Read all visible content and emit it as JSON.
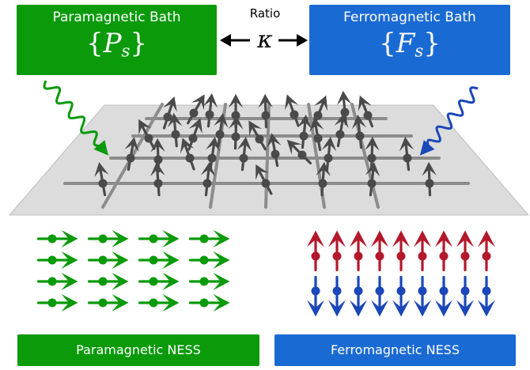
{
  "colors": {
    "green": "#0a9a0a",
    "blue": "#1a6ad4",
    "spin_red": "#b3192b",
    "spin_blue": "#1b47b8",
    "lattice_fill": "#dcdcdc",
    "lattice_line": "#8c8c8c",
    "spin_gray": "#4a4a4a"
  },
  "paramagnetic_bath": {
    "label": "Paramagnetic Bath",
    "symbol": "P",
    "subscript": "s"
  },
  "ferromagnetic_bath": {
    "label": "Ferromagnetic Bath",
    "symbol": "F",
    "subscript": "s"
  },
  "ratio": {
    "label": "Ratio",
    "symbol": "κ"
  },
  "paramagnetic_ness": {
    "label": "Paramagnetic NESS"
  },
  "ferromagnetic_ness": {
    "label": "Ferromagnetic NESS"
  }
}
